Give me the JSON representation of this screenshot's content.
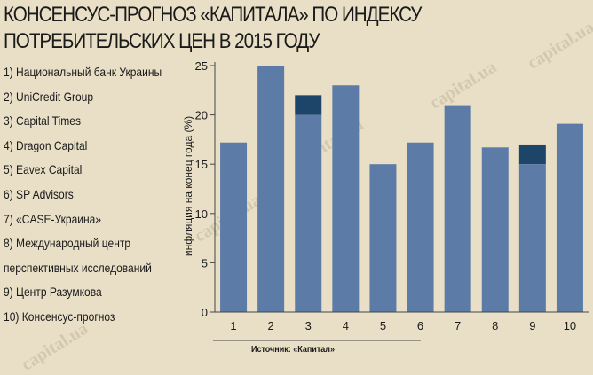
{
  "header": {
    "title_line1": "КОНСЕНСУС-ПРОГНОЗ «КАПИТАЛА» ПО ИНДЕКСУ",
    "title_line2": "ПОТРЕБИТЕЛЬСКИХ ЦЕН В 2015 ГОДУ"
  },
  "legend": {
    "items": [
      "1) Национальный банк Украины",
      "2) UniCredit Group",
      "3) Capital Times",
      "4) Dragon Capital",
      "5) Eavex Capital",
      "6) SP Advisors",
      "7) «CASE-Украина»",
      "8) Международный центр",
      "перспективных исследований",
      "9) Центр Разумкова",
      "10) Консенсус-прогноз"
    ]
  },
  "source": "Источник: «Капитал»",
  "watermark": "capital.ua",
  "colors": {
    "background": "#e8dfc6",
    "bar": "#5c7ba6",
    "bar_range": "#1d4469",
    "axis": "#444444"
  },
  "chart_data": {
    "type": "bar",
    "categories": [
      "1",
      "2",
      "3",
      "4",
      "5",
      "6",
      "7",
      "8",
      "9",
      "10"
    ],
    "values": [
      17.2,
      25,
      20,
      23,
      15,
      17.2,
      20.9,
      16.7,
      15,
      19.1
    ],
    "range_tops": [
      null,
      null,
      22,
      null,
      null,
      null,
      null,
      null,
      17,
      null
    ],
    "title": "",
    "xlabel": "",
    "ylabel": "инфляция на конец года (%)",
    "ylim": [
      0,
      25
    ],
    "yticks": [
      0,
      5,
      10,
      15,
      20,
      25
    ],
    "grid": false,
    "legend": "left"
  }
}
